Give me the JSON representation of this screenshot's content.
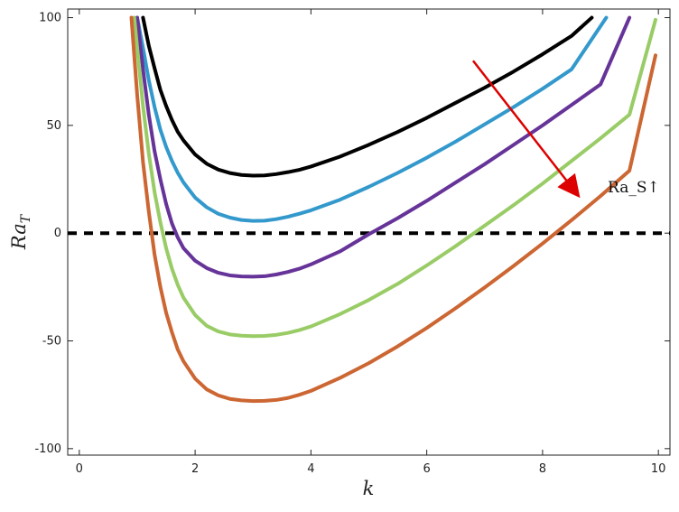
{
  "chart_data": {
    "type": "line",
    "title": "",
    "xlabel": "k",
    "ylabel_main": "Ra",
    "ylabel_sub": "T",
    "xlim": [
      -0.2,
      10.2
    ],
    "ylim": [
      -103,
      104
    ],
    "x_ticks": [
      0,
      2,
      4,
      6,
      8,
      10
    ],
    "y_ticks": [
      100,
      50,
      0,
      -50,
      -100
    ],
    "x_tick_labels": [
      "0",
      "2",
      "4",
      "6",
      "8",
      "10"
    ],
    "y_tick_labels": [
      "100",
      "50",
      "0",
      "-50",
      "-100"
    ],
    "grid": false,
    "legend": "none",
    "series": [
      {
        "color": "#000000",
        "x": [
          1.1,
          1.2,
          1.3,
          1.4,
          1.5,
          1.6,
          1.7,
          1.8,
          2.0,
          2.2,
          2.4,
          2.6,
          2.8,
          3.0,
          3.2,
          3.4,
          3.6,
          3.8,
          4.0,
          4.5,
          5.0,
          5.5,
          6.0,
          6.5,
          7.0,
          7.5,
          8.0,
          8.5,
          8.85
        ],
        "y": [
          100,
          87,
          76.5,
          66.5,
          59,
          52.5,
          47,
          43,
          36.5,
          32.2,
          29.5,
          27.9,
          27,
          26.7,
          26.8,
          27.4,
          28.3,
          29.4,
          30.9,
          35.5,
          41,
          47,
          53.5,
          60.5,
          67.5,
          75,
          83,
          91.5,
          100
        ]
      },
      {
        "color": "#3399cc",
        "x": [
          1.0,
          1.1,
          1.2,
          1.3,
          1.4,
          1.5,
          1.6,
          1.7,
          1.8,
          2.0,
          2.2,
          2.4,
          2.6,
          2.8,
          3.0,
          3.2,
          3.4,
          3.6,
          3.8,
          4.0,
          4.5,
          5.0,
          5.5,
          6.0,
          6.5,
          7.0,
          7.5,
          8.0,
          8.5,
          9.1
        ],
        "y": [
          100,
          86,
          71,
          58.5,
          48,
          40,
          33.5,
          28,
          23.5,
          16.5,
          12,
          9,
          7.2,
          6.1,
          5.7,
          5.8,
          6.5,
          7.6,
          9,
          10.6,
          15.5,
          21.5,
          28,
          35,
          42.5,
          50.5,
          58.5,
          67,
          76,
          100
        ]
      },
      {
        "color": "#663399",
        "x": [
          1.0,
          1.1,
          1.2,
          1.3,
          1.4,
          1.5,
          1.6,
          1.7,
          1.8,
          2.0,
          2.2,
          2.4,
          2.6,
          2.8,
          3.0,
          3.2,
          3.4,
          3.6,
          3.8,
          4.0,
          4.5,
          5.0,
          5.5,
          6.0,
          6.5,
          7.0,
          7.5,
          8.0,
          8.5,
          9.0,
          9.5
        ],
        "y": [
          100,
          76,
          55,
          38,
          25,
          13.5,
          4.5,
          -2,
          -7,
          -12.8,
          -16.2,
          -18.4,
          -19.6,
          -20.1,
          -20.2,
          -20,
          -19.2,
          -18,
          -16.5,
          -14.5,
          -8.5,
          -0.5,
          7,
          15,
          23.5,
          32,
          41,
          50,
          59.5,
          69,
          100
        ]
      },
      {
        "color": "#99cc66",
        "x": [
          0.95,
          1.0,
          1.1,
          1.2,
          1.3,
          1.4,
          1.5,
          1.6,
          1.7,
          1.8,
          2.0,
          2.2,
          2.4,
          2.6,
          2.8,
          3.0,
          3.2,
          3.4,
          3.6,
          3.8,
          4.0,
          4.5,
          5.0,
          5.5,
          6.0,
          6.5,
          7.0,
          7.5,
          8.0,
          8.5,
          9.0,
          9.5,
          9.95
        ],
        "y": [
          100,
          86,
          59,
          37,
          19,
          5,
          -7,
          -16.5,
          -24,
          -30,
          -38,
          -43,
          -45.6,
          -47,
          -47.6,
          -47.8,
          -47.7,
          -47.2,
          -46.3,
          -45,
          -43.3,
          -37.6,
          -31,
          -23.5,
          -15,
          -6,
          3.5,
          13,
          23,
          33.5,
          44,
          55,
          99
        ]
      },
      {
        "color": "#cc6633",
        "x": [
          0.9,
          1.0,
          1.1,
          1.2,
          1.3,
          1.4,
          1.5,
          1.6,
          1.7,
          1.8,
          2.0,
          2.2,
          2.4,
          2.6,
          2.8,
          3.0,
          3.2,
          3.4,
          3.6,
          3.8,
          4.0,
          4.5,
          5.0,
          5.5,
          6.0,
          6.5,
          7.0,
          7.5,
          8.0,
          8.5,
          9.0,
          9.5,
          9.95
        ],
        "y": [
          100,
          64,
          33,
          10,
          -10,
          -25,
          -37,
          -46,
          -54,
          -59.5,
          -67.5,
          -72.5,
          -75.3,
          -76.9,
          -77.6,
          -77.9,
          -77.8,
          -77.4,
          -76.5,
          -75,
          -73.2,
          -67.2,
          -60.3,
          -52.5,
          -44,
          -34.8,
          -25.2,
          -15.2,
          -4.8,
          6,
          17.2,
          29,
          82.5
        ]
      }
    ],
    "reference_line": {
      "y": 0,
      "color": "#000000",
      "style": "dashed"
    },
    "annotation": {
      "text": "Ra_S",
      "arrow_symbol": "↑",
      "color": "#dd0000",
      "start": [
        6.8,
        80
      ],
      "end": [
        8.6,
        18
      ]
    }
  }
}
